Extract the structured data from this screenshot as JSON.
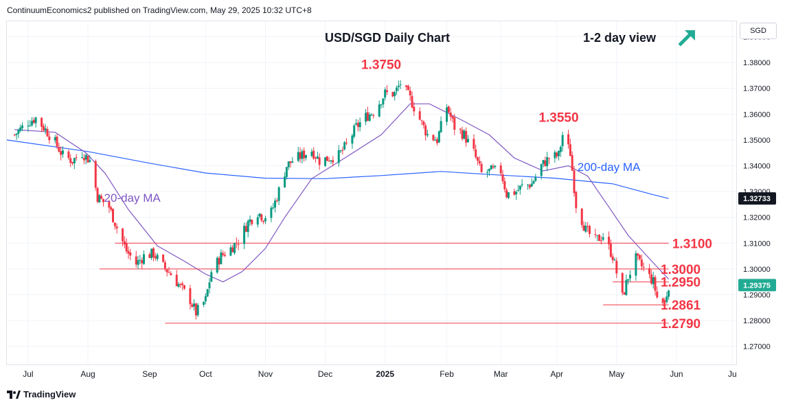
{
  "header": {
    "attribution": "ContinuumEconomics2 published on TradingView.com, May 29, 2025 10:32 UTC+8",
    "title": "USD/SGD Daily Chart",
    "view": "1-2 day view",
    "view_arrow_icon": "arrow-up-right-icon",
    "currency_button": "SGD"
  },
  "footer": {
    "brand": "TradingView",
    "brand_icon": "tradingview-logo-icon"
  },
  "colors": {
    "up_candle": "#089981",
    "down_candle": "#f23645",
    "ma20": "#7e57c2",
    "ma200": "#2962ff",
    "level_line": "#f23645",
    "annotation": "#f23645",
    "arrow": "#22ab94",
    "price_badge": "#22ab94"
  },
  "chart_data": {
    "type": "candlestick",
    "title": "USD/SGD Daily Chart",
    "ylim": [
      1.263,
      1.396
    ],
    "xlim": [
      "2025-06-20",
      "2025-07-03"
    ],
    "y_ticks": [
      "1.27000",
      "1.28000",
      "1.29000",
      "1.30000",
      "1.31000",
      "1.32000",
      "1.33000",
      "1.34000",
      "1.35000",
      "1.36000",
      "1.37000",
      "1.38000",
      "1.39000"
    ],
    "x_ticks": [
      {
        "label": "Jul",
        "date": "2024-07-01"
      },
      {
        "label": "Aug",
        "date": "2024-08-01"
      },
      {
        "label": "Sep",
        "date": "2024-09-02"
      },
      {
        "label": "Oct",
        "date": "2024-10-01"
      },
      {
        "label": "Nov",
        "date": "2024-11-01"
      },
      {
        "label": "Dec",
        "date": "2024-12-02"
      },
      {
        "label": "2025",
        "date": "2025-01-02"
      },
      {
        "label": "Feb",
        "date": "2025-02-03"
      },
      {
        "label": "Mar",
        "date": "2025-03-03"
      },
      {
        "label": "Apr",
        "date": "2025-04-01"
      },
      {
        "label": "May",
        "date": "2025-05-02"
      },
      {
        "label": "Jun",
        "date": "2025-06-02"
      },
      {
        "label": "Ju",
        "date": "2025-07-01"
      }
    ],
    "price_badges": [
      {
        "label": "1.32733",
        "value": 1.32733,
        "color": "#131722"
      },
      {
        "label": "1.29375",
        "value": 1.29375,
        "color": "#22ab94"
      }
    ],
    "levels": [
      {
        "label": "1.3100",
        "value": 1.31,
        "from": "2024-08-15",
        "to": "2025-05-29",
        "label_at": "2025-05-28"
      },
      {
        "label": "1.3000",
        "value": 1.3,
        "from": "2024-08-07",
        "to": "2025-05-29",
        "label_at": "2025-05-22"
      },
      {
        "label": "1.2950",
        "value": 1.295,
        "from": "2025-04-30",
        "to": "2025-05-29",
        "label_at": "2025-05-22"
      },
      {
        "label": "1.2861",
        "value": 1.2861,
        "from": "2025-04-25",
        "to": "2025-05-29",
        "label_at": "2025-05-22"
      },
      {
        "label": "1.2790",
        "value": 1.279,
        "from": "2024-09-10",
        "to": "2025-05-29",
        "label_at": "2025-05-22"
      }
    ],
    "annotations": [
      {
        "label": "1.3750",
        "date": "2024-12-31",
        "value": 1.3775
      },
      {
        "label": "1.3550",
        "date": "2025-04-02",
        "value": 1.357
      },
      {
        "label": "200-day MA",
        "date": "2025-04-28",
        "value": 1.338,
        "color": "#2962ff"
      },
      {
        "label": "20-day MA",
        "date": "2024-08-24",
        "value": 1.326,
        "color": "#7e57c2"
      }
    ],
    "closes": [
      [
        "2024-06-24",
        1.352
      ],
      [
        "2024-07-01",
        1.357
      ],
      [
        "2024-07-05",
        1.3585
      ],
      [
        "2024-07-10",
        1.354
      ],
      [
        "2024-07-15",
        1.349
      ],
      [
        "2024-07-19",
        1.344
      ],
      [
        "2024-07-24",
        1.342
      ],
      [
        "2024-07-29",
        1.345
      ],
      [
        "2024-08-02",
        1.342
      ],
      [
        "2024-08-06",
        1.328
      ],
      [
        "2024-08-12",
        1.324
      ],
      [
        "2024-08-16",
        1.316
      ],
      [
        "2024-08-21",
        1.307
      ],
      [
        "2024-08-26",
        1.302
      ],
      [
        "2024-08-30",
        1.305
      ],
      [
        "2024-09-04",
        1.306
      ],
      [
        "2024-09-09",
        1.301
      ],
      [
        "2024-09-13",
        1.298
      ],
      [
        "2024-09-18",
        1.293
      ],
      [
        "2024-09-23",
        1.288
      ],
      [
        "2024-09-26",
        1.283
      ],
      [
        "2024-10-01",
        1.288
      ],
      [
        "2024-10-04",
        1.299
      ],
      [
        "2024-10-09",
        1.305
      ],
      [
        "2024-10-14",
        1.308
      ],
      [
        "2024-10-18",
        1.311
      ],
      [
        "2024-10-23",
        1.318
      ],
      [
        "2024-10-28",
        1.322
      ],
      [
        "2024-10-31",
        1.32
      ],
      [
        "2024-11-04",
        1.322
      ],
      [
        "2024-11-07",
        1.328
      ],
      [
        "2024-11-12",
        1.34
      ],
      [
        "2024-11-15",
        1.342
      ],
      [
        "2024-11-20",
        1.344
      ],
      [
        "2024-11-25",
        1.346
      ],
      [
        "2024-11-29",
        1.342
      ],
      [
        "2024-12-04",
        1.343
      ],
      [
        "2024-12-09",
        1.344
      ],
      [
        "2024-12-13",
        1.348
      ],
      [
        "2024-12-18",
        1.355
      ],
      [
        "2024-12-23",
        1.359
      ],
      [
        "2024-12-27",
        1.361
      ],
      [
        "2025-01-02",
        1.368
      ],
      [
        "2025-01-07",
        1.368
      ],
      [
        "2025-01-10",
        1.372
      ],
      [
        "2025-01-15",
        1.366
      ],
      [
        "2025-01-20",
        1.358
      ],
      [
        "2025-01-24",
        1.352
      ],
      [
        "2025-01-29",
        1.35
      ],
      [
        "2025-02-03",
        1.363
      ],
      [
        "2025-02-07",
        1.355
      ],
      [
        "2025-02-12",
        1.352
      ],
      [
        "2025-02-17",
        1.345
      ],
      [
        "2025-02-21",
        1.337
      ],
      [
        "2025-02-26",
        1.338
      ],
      [
        "2025-03-03",
        1.338
      ],
      [
        "2025-03-06",
        1.329
      ],
      [
        "2025-03-11",
        1.33
      ],
      [
        "2025-03-14",
        1.332
      ],
      [
        "2025-03-19",
        1.333
      ],
      [
        "2025-03-24",
        1.34
      ],
      [
        "2025-03-28",
        1.343
      ],
      [
        "2025-04-02",
        1.344
      ],
      [
        "2025-04-04",
        1.352
      ],
      [
        "2025-04-08",
        1.345
      ],
      [
        "2025-04-11",
        1.325
      ],
      [
        "2025-04-16",
        1.315
      ],
      [
        "2025-04-21",
        1.311
      ],
      [
        "2025-04-25",
        1.313
      ],
      [
        "2025-04-30",
        1.305
      ],
      [
        "2025-05-05",
        1.289
      ],
      [
        "2025-05-08",
        1.297
      ],
      [
        "2025-05-12",
        1.304
      ],
      [
        "2025-05-16",
        1.3
      ],
      [
        "2025-05-21",
        1.295
      ],
      [
        "2025-05-23",
        1.289
      ],
      [
        "2025-05-27",
        1.287
      ],
      [
        "2025-05-29",
        1.2938
      ]
    ],
    "ma20": [
      [
        "2024-06-24",
        1.354
      ],
      [
        "2024-07-15",
        1.353
      ],
      [
        "2024-07-31",
        1.345
      ],
      [
        "2024-08-10",
        1.337
      ],
      [
        "2024-08-22",
        1.323
      ],
      [
        "2024-09-06",
        1.309
      ],
      [
        "2024-09-20",
        1.303
      ],
      [
        "2024-10-01",
        1.298
      ],
      [
        "2024-10-10",
        1.295
      ],
      [
        "2024-10-20",
        1.299
      ],
      [
        "2024-11-01",
        1.308
      ],
      [
        "2024-11-11",
        1.32
      ],
      [
        "2024-11-25",
        1.335
      ],
      [
        "2024-12-10",
        1.342
      ],
      [
        "2024-12-31",
        1.352
      ],
      [
        "2025-01-15",
        1.364
      ],
      [
        "2025-01-25",
        1.364
      ],
      [
        "2025-02-10",
        1.358
      ],
      [
        "2025-02-25",
        1.352
      ],
      [
        "2025-03-10",
        1.343
      ],
      [
        "2025-03-25",
        1.338
      ],
      [
        "2025-04-07",
        1.34
      ],
      [
        "2025-04-17",
        1.336
      ],
      [
        "2025-04-28",
        1.324
      ],
      [
        "2025-05-08",
        1.313
      ],
      [
        "2025-05-19",
        1.304
      ],
      [
        "2025-05-29",
        1.296
      ]
    ],
    "ma200": [
      [
        "2024-06-20",
        1.35
      ],
      [
        "2024-08-01",
        1.3455
      ],
      [
        "2024-09-02",
        1.341
      ],
      [
        "2024-10-01",
        1.3372
      ],
      [
        "2024-11-01",
        1.3352
      ],
      [
        "2024-12-02",
        1.335
      ],
      [
        "2024-12-31",
        1.3362
      ],
      [
        "2025-01-31",
        1.3378
      ],
      [
        "2025-02-28",
        1.3365
      ],
      [
        "2025-03-31",
        1.3352
      ],
      [
        "2025-04-30",
        1.333
      ],
      [
        "2025-05-20",
        1.329
      ],
      [
        "2025-05-29",
        1.3273
      ]
    ]
  }
}
